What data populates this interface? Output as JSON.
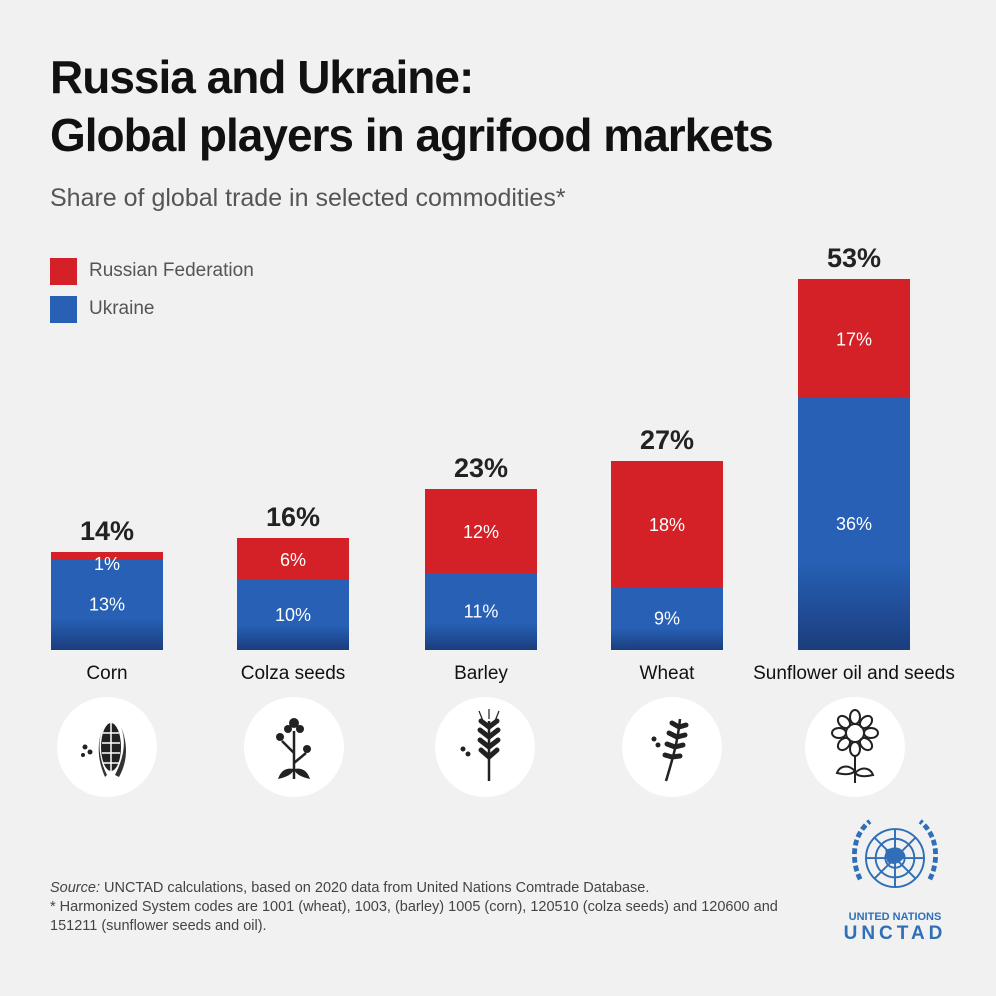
{
  "header": {
    "title_line1": "Russia and Ukraine:",
    "title_line2": "Global players in agrifood markets",
    "subtitle": "Share of global trade in selected commodities*"
  },
  "colors": {
    "russia": "#d42128",
    "ukraine": "#2760b5",
    "ukraine_dark": "#1b3d7d"
  },
  "chart_data": {
    "type": "bar",
    "stacked": true,
    "categories": [
      "Corn",
      "Colza seeds",
      "Barley",
      "Wheat",
      "Sunflower oil and seeds"
    ],
    "series": [
      {
        "name": "Ukraine",
        "values": [
          13,
          10,
          11,
          9,
          36
        ]
      },
      {
        "name": "Russian Federation",
        "values": [
          1,
          6,
          12,
          18,
          17
        ]
      }
    ],
    "totals": [
      14,
      16,
      23,
      27,
      53
    ],
    "value_suffix": "%",
    "legend_position": "top-left",
    "ylim": [
      0,
      53
    ]
  },
  "legend": [
    {
      "label": "Russian Federation",
      "color": "#d42128"
    },
    {
      "label": "Ukraine",
      "color": "#2760b5"
    }
  ],
  "icons": [
    "corn-icon",
    "colza-icon",
    "barley-icon",
    "wheat-icon",
    "sunflower-icon"
  ],
  "footer": {
    "source_label": "Source:",
    "source_text": " UNCTAD calculations, based on 2020 data from United Nations Comtrade Database.",
    "note": "* Harmonized System codes are 1001 (wheat), 1003, (barley) 1005 (corn), 120510 (colza seeds) and 120600 and 151211 (sunflower seeds and oil)."
  },
  "logo": {
    "line1": "UNITED NATIONS",
    "line2": "UNCTAD"
  }
}
